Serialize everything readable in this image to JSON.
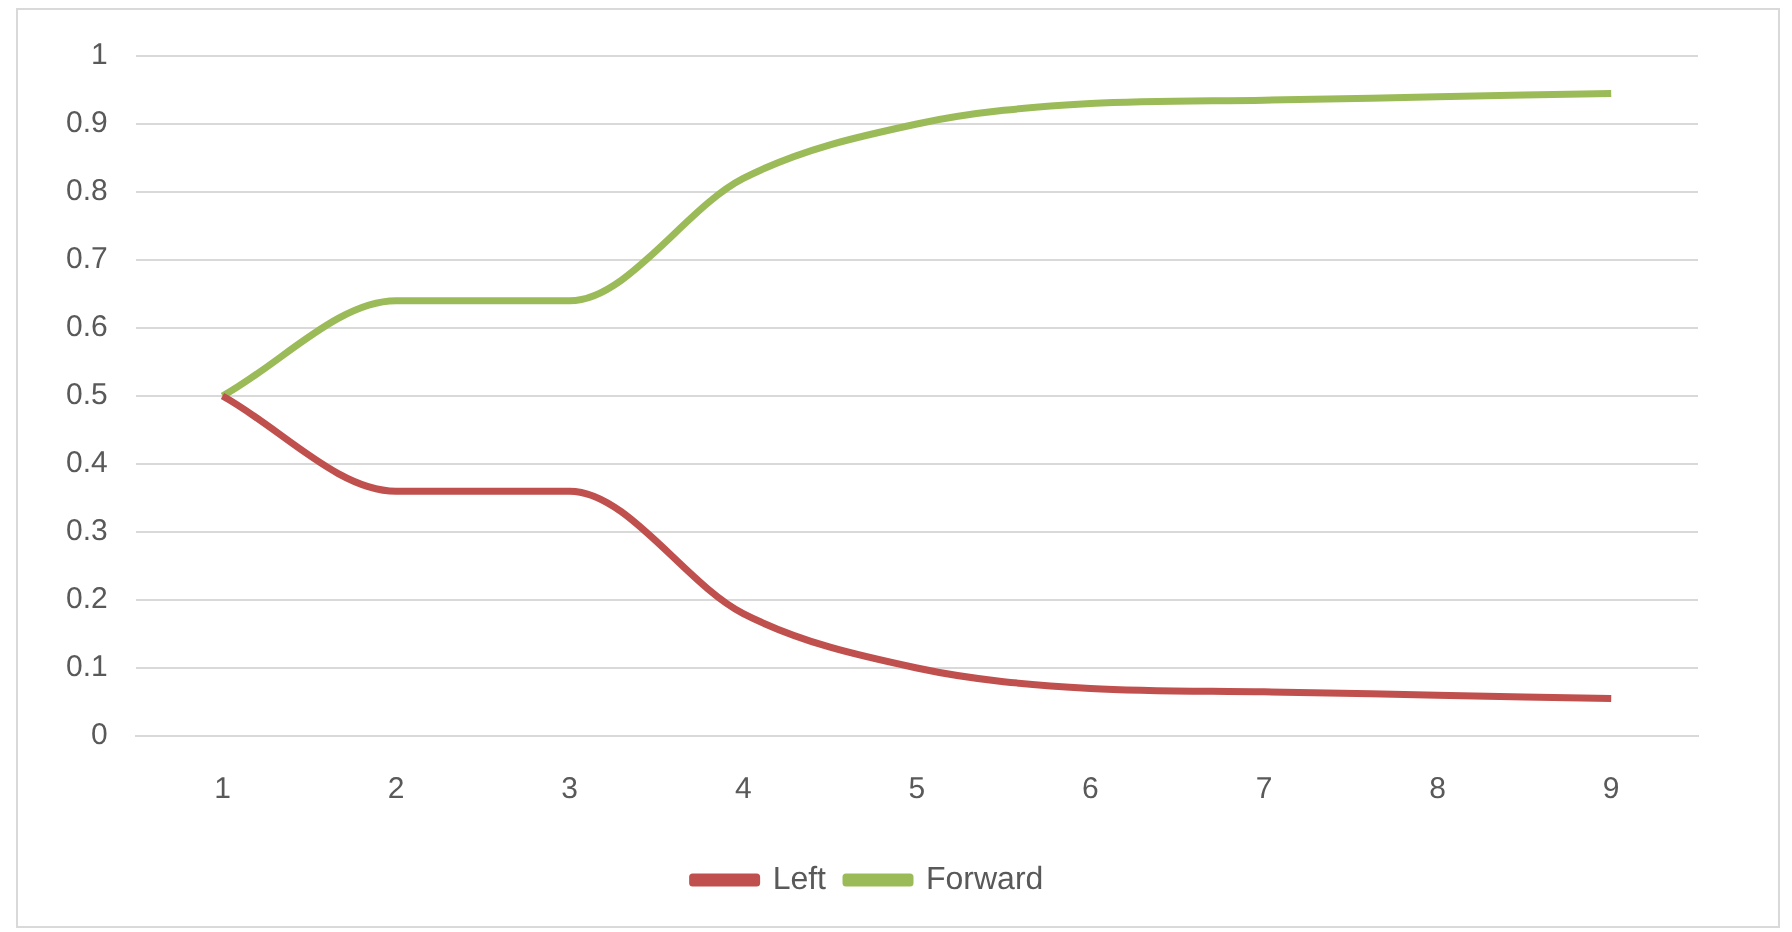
{
  "chart_data": {
    "type": "line",
    "categories": [
      "1",
      "2",
      "3",
      "4",
      "5",
      "6",
      "7",
      "8",
      "9"
    ],
    "series": [
      {
        "name": "Left",
        "color": "#c0504d",
        "values": [
          0.5,
          0.36,
          0.36,
          0.18,
          0.1,
          0.07,
          0.065,
          0.06,
          0.055
        ]
      },
      {
        "name": "Forward",
        "color": "#9bbb59",
        "values": [
          0.5,
          0.64,
          0.64,
          0.82,
          0.9,
          0.93,
          0.935,
          0.94,
          0.945
        ]
      }
    ],
    "ylim": [
      0,
      1
    ],
    "yticks": [
      0,
      0.1,
      0.2,
      0.3,
      0.4,
      0.5,
      0.6,
      0.7,
      0.8,
      0.9,
      1
    ],
    "grid": "y",
    "legend": "bottom",
    "marker": "none",
    "line_style": "solid"
  }
}
